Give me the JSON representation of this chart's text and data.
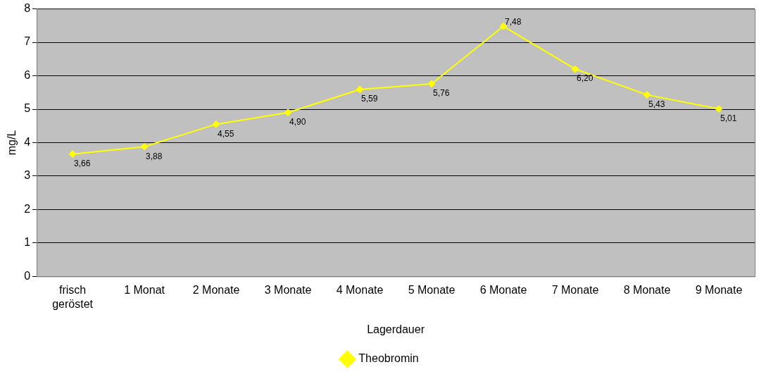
{
  "chart_data": {
    "type": "line",
    "xlabel": "Lagerdauer",
    "ylabel": "mg/L",
    "categories": [
      "frisch geröstet",
      "1 Monat",
      "2 Monate",
      "3 Monate",
      "4 Monate",
      "5 Monate",
      "6 Monate",
      "7 Monate",
      "8 Monate",
      "9 Monate"
    ],
    "series": [
      {
        "name": "Theobromin",
        "color": "#ffff00",
        "values": [
          3.66,
          3.88,
          4.55,
          4.9,
          5.59,
          5.76,
          7.48,
          6.2,
          5.43,
          5.01
        ],
        "value_labels": [
          "3,66",
          "3,88",
          "4,55",
          "4,90",
          "5,59",
          "5,76",
          "7,48",
          "6,20",
          "5,43",
          "5,01"
        ]
      }
    ],
    "ylim": [
      0,
      8
    ],
    "yticks": [
      0,
      1,
      2,
      3,
      4,
      5,
      6,
      7,
      8
    ],
    "grid": "y",
    "legend": "bottom",
    "marker": "diamond",
    "line_style": "solid"
  }
}
